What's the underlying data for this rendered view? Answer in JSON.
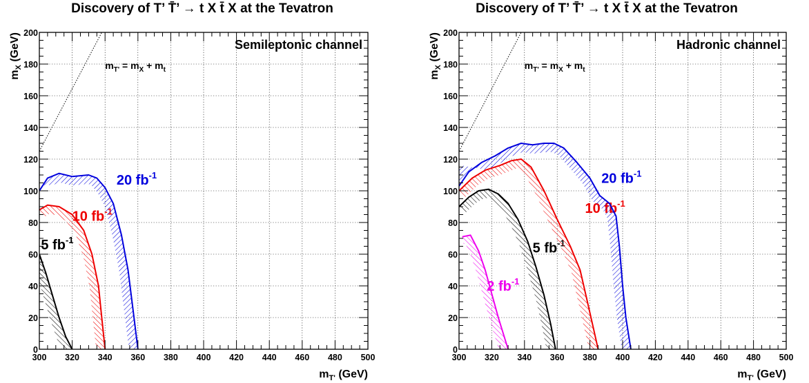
{
  "chart_data": [
    {
      "type": "area",
      "title": "Discovery of T’ T̄’ → t X t̄ X at the Tevatron",
      "xlabel": "m_T' (GeV)",
      "ylabel": "m_X (GeV)",
      "xlim": [
        300,
        500
      ],
      "ylim": [
        0,
        200
      ],
      "xticks": [
        300,
        320,
        340,
        360,
        380,
        400,
        420,
        440,
        460,
        480,
        500
      ],
      "yticks": [
        0,
        20,
        40,
        60,
        80,
        100,
        120,
        140,
        160,
        180,
        200
      ],
      "grid": true,
      "annotation": "Semileptonic channel",
      "relation_label": "m_T' = m_X + m_t",
      "relation_line": {
        "x": [
          300,
          338
        ],
        "y": [
          125,
          200
        ]
      },
      "series": [
        {
          "name": "5 fb-1",
          "color": "#000000",
          "hatch": "backslash",
          "x": [
            300,
            304,
            308,
            312,
            316,
            320
          ],
          "y": [
            60,
            48,
            34,
            20,
            8,
            0
          ],
          "label_at": [
            301,
            63
          ]
        },
        {
          "name": "10 fb-1",
          "color": "#ee0000",
          "hatch": "backslash",
          "x": [
            300,
            305,
            312,
            320,
            327,
            332,
            336,
            338,
            340
          ],
          "y": [
            88,
            91,
            90,
            85,
            75,
            60,
            40,
            20,
            0
          ],
          "label_at": [
            320,
            81
          ]
        },
        {
          "name": "20 fb-1",
          "color": "#0000dd",
          "hatch": "slash",
          "x": [
            300,
            305,
            312,
            320,
            330,
            335,
            340,
            345,
            350,
            354,
            357,
            360
          ],
          "y": [
            100,
            108,
            111,
            109,
            110,
            108,
            102,
            92,
            72,
            50,
            25,
            0
          ],
          "label_at": [
            347,
            104
          ]
        }
      ]
    },
    {
      "type": "area",
      "title": "Discovery of T’ T̄’ → t X t̄ X at the Tevatron",
      "xlabel": "m_T' (GeV)",
      "ylabel": "m_X (GeV)",
      "xlim": [
        300,
        500
      ],
      "ylim": [
        0,
        200
      ],
      "xticks": [
        300,
        320,
        340,
        360,
        380,
        400,
        420,
        440,
        460,
        480,
        500
      ],
      "yticks": [
        0,
        20,
        40,
        60,
        80,
        100,
        120,
        140,
        160,
        180,
        200
      ],
      "grid": true,
      "annotation": "Hadronic channel",
      "relation_label": "m_T' = m_X + m_t",
      "relation_line": {
        "x": [
          300,
          338
        ],
        "y": [
          125,
          200
        ]
      },
      "series": [
        {
          "name": "2 fb-1",
          "color": "#ee00ee",
          "hatch": "backslash",
          "x": [
            302,
            307,
            312,
            316,
            320,
            324,
            327,
            330
          ],
          "y": [
            71,
            72,
            62,
            50,
            35,
            20,
            10,
            0
          ],
          "label_at": [
            317,
            37
          ]
        },
        {
          "name": "5 fb-1",
          "color": "#000000",
          "hatch": "backslash",
          "x": [
            300,
            306,
            312,
            318,
            324,
            330,
            336,
            342,
            347,
            352,
            356,
            359
          ],
          "y": [
            90,
            96,
            100,
            101,
            98,
            92,
            82,
            68,
            52,
            34,
            16,
            0
          ],
          "label_at": [
            345,
            61
          ]
        },
        {
          "name": "10 fb-1",
          "color": "#ee0000",
          "hatch": "backslash",
          "x": [
            300,
            308,
            316,
            325,
            332,
            338,
            344,
            352,
            360,
            368,
            374,
            378,
            382,
            385
          ],
          "y": [
            100,
            108,
            113,
            116,
            119,
            120,
            115,
            100,
            82,
            65,
            50,
            32,
            14,
            0
          ],
          "label_at": [
            377,
            86
          ]
        },
        {
          "name": "20 fb-1",
          "color": "#0000dd",
          "hatch": "slash",
          "x": [
            300,
            306,
            314,
            322,
            330,
            338,
            345,
            352,
            358,
            364,
            372,
            380,
            386,
            392,
            396,
            398,
            400,
            402,
            405
          ],
          "y": [
            103,
            112,
            118,
            122,
            127,
            130,
            129,
            130,
            130,
            127,
            118,
            108,
            97,
            92,
            84,
            65,
            40,
            20,
            0
          ],
          "label_at": [
            387,
            105
          ]
        }
      ]
    }
  ]
}
